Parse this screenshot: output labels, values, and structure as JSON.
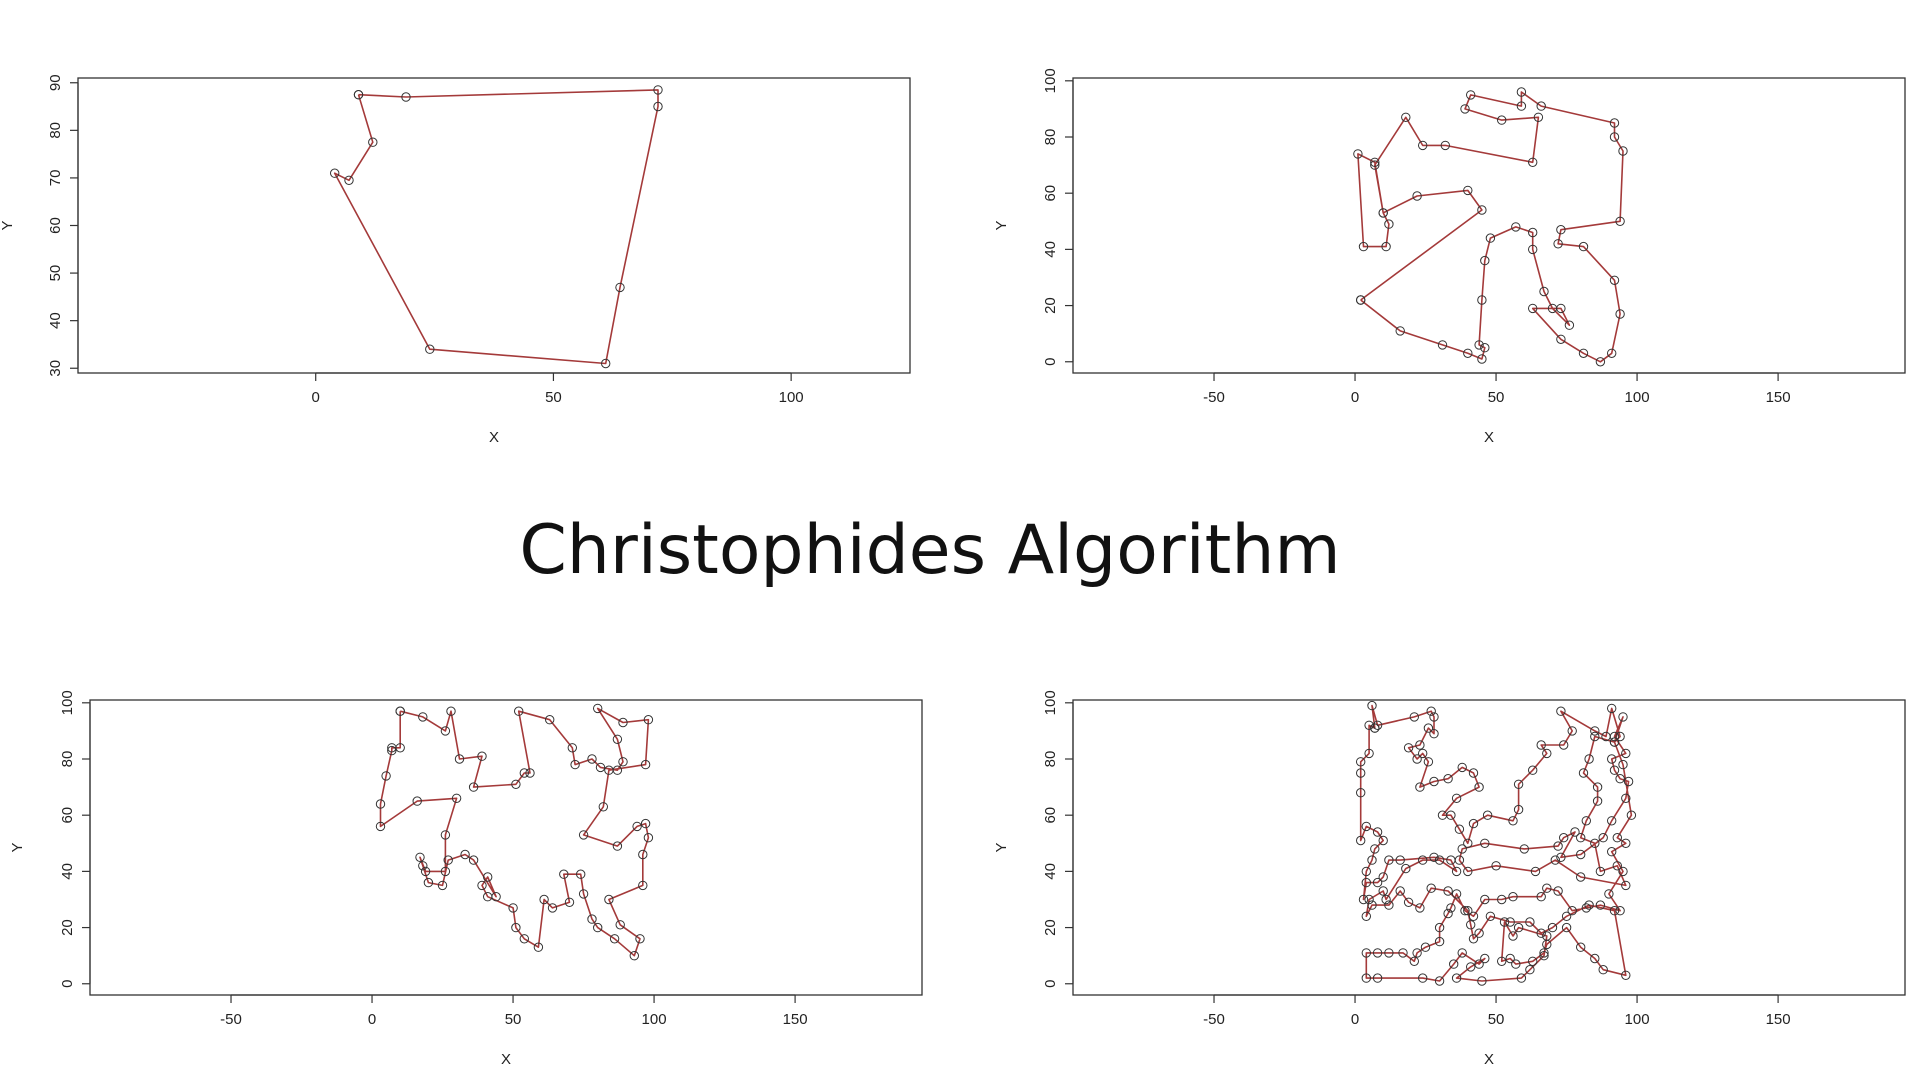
{
  "title": "Christophides Algorithm",
  "colors": {
    "tour": "#a43a3a",
    "points": "#333333",
    "frame": "#333333"
  },
  "chart_data": [
    {
      "type": "line",
      "xlabel": "X",
      "ylabel": "Y",
      "xlim": [
        -50,
        125
      ],
      "ylim": [
        29,
        91
      ],
      "xticks": [
        0,
        50,
        100
      ],
      "yticks": [
        30,
        40,
        50,
        60,
        70,
        80,
        90
      ],
      "grid": false,
      "points": [
        [
          9,
          87.5
        ],
        [
          19,
          87
        ],
        [
          72,
          88.5
        ],
        [
          72,
          85
        ],
        [
          64,
          47
        ],
        [
          61,
          31
        ],
        [
          24,
          34
        ],
        [
          4,
          71
        ],
        [
          7,
          69.5
        ],
        [
          12,
          77.5
        ],
        [
          9,
          87.5
        ]
      ]
    },
    {
      "type": "line",
      "xlabel": "X",
      "ylabel": "Y",
      "xlim": [
        -100,
        195
      ],
      "ylim": [
        -4,
        101
      ],
      "xticks": [
        -50,
        0,
        50,
        100,
        150
      ],
      "yticks": [
        0,
        20,
        40,
        60,
        80,
        100
      ],
      "grid": false,
      "points": [
        [
          2,
          22
        ],
        [
          16,
          11
        ],
        [
          31,
          6
        ],
        [
          40,
          3
        ],
        [
          45,
          1
        ],
        [
          46,
          5
        ],
        [
          44,
          6
        ],
        [
          45,
          22
        ],
        [
          46,
          36
        ],
        [
          48,
          44
        ],
        [
          57,
          48
        ],
        [
          63,
          46
        ],
        [
          63,
          40
        ],
        [
          67,
          25
        ],
        [
          70,
          19
        ],
        [
          76,
          13
        ],
        [
          73,
          19
        ],
        [
          63,
          19
        ],
        [
          73,
          8
        ],
        [
          81,
          3
        ],
        [
          87,
          0
        ],
        [
          91,
          3
        ],
        [
          94,
          17
        ],
        [
          92,
          29
        ],
        [
          81,
          41
        ],
        [
          72,
          42
        ],
        [
          73,
          47
        ],
        [
          94,
          50
        ],
        [
          95,
          75
        ],
        [
          92,
          80
        ],
        [
          92,
          85
        ],
        [
          66,
          91
        ],
        [
          59,
          96
        ],
        [
          59,
          91
        ],
        [
          41,
          95
        ],
        [
          39,
          90
        ],
        [
          52,
          86
        ],
        [
          65,
          87
        ],
        [
          63,
          71
        ],
        [
          32,
          77
        ],
        [
          24,
          77
        ],
        [
          18,
          87
        ],
        [
          7,
          70
        ],
        [
          10,
          53
        ],
        [
          12,
          49
        ],
        [
          11,
          41
        ],
        [
          3,
          41
        ],
        [
          1,
          74
        ],
        [
          7,
          71
        ],
        [
          10,
          53
        ],
        [
          22,
          59
        ],
        [
          40,
          61
        ],
        [
          45,
          54
        ],
        [
          2,
          22
        ]
      ]
    },
    {
      "type": "line",
      "xlabel": "X",
      "ylabel": "Y",
      "xlim": [
        -100,
        195
      ],
      "ylim": [
        -4,
        101
      ],
      "xticks": [
        -50,
        0,
        50,
        100,
        150
      ],
      "yticks": [
        0,
        20,
        40,
        60,
        80,
        100
      ],
      "grid": false,
      "points": [
        [
          10,
          97
        ],
        [
          18,
          95
        ],
        [
          26,
          90
        ],
        [
          28,
          97
        ],
        [
          31,
          80
        ],
        [
          39,
          81
        ],
        [
          36,
          70
        ],
        [
          51,
          71
        ],
        [
          54,
          75
        ],
        [
          56,
          75
        ],
        [
          52,
          97
        ],
        [
          63,
          94
        ],
        [
          71,
          84
        ],
        [
          72,
          78
        ],
        [
          78,
          80
        ],
        [
          81,
          77
        ],
        [
          87,
          76
        ],
        [
          89,
          79
        ],
        [
          87,
          87
        ],
        [
          80,
          98
        ],
        [
          89,
          93
        ],
        [
          98,
          94
        ],
        [
          97,
          78
        ],
        [
          84,
          76
        ],
        [
          82,
          63
        ],
        [
          75,
          53
        ],
        [
          87,
          49
        ],
        [
          94,
          56
        ],
        [
          97,
          57
        ],
        [
          98,
          52
        ],
        [
          96,
          46
        ],
        [
          96,
          35
        ],
        [
          84,
          30
        ],
        [
          88,
          21
        ],
        [
          95,
          16
        ],
        [
          93,
          10
        ],
        [
          86,
          16
        ],
        [
          80,
          20
        ],
        [
          78,
          23
        ],
        [
          75,
          32
        ],
        [
          74,
          39
        ],
        [
          68,
          39
        ],
        [
          70,
          29
        ],
        [
          64,
          27
        ],
        [
          61,
          30
        ],
        [
          59,
          13
        ],
        [
          54,
          16
        ],
        [
          51,
          20
        ],
        [
          50,
          27
        ],
        [
          41,
          31
        ],
        [
          39,
          35
        ],
        [
          41,
          38
        ],
        [
          44,
          31
        ],
        [
          36,
          44
        ],
        [
          33,
          46
        ],
        [
          27,
          44
        ],
        [
          25,
          35
        ],
        [
          20,
          36
        ],
        [
          18,
          42
        ],
        [
          17,
          45
        ],
        [
          19,
          40
        ],
        [
          26,
          40
        ],
        [
          26,
          53
        ],
        [
          30,
          66
        ],
        [
          16,
          65
        ],
        [
          3,
          56
        ],
        [
          3,
          64
        ],
        [
          5,
          74
        ],
        [
          7,
          83
        ],
        [
          7,
          84
        ],
        [
          10,
          84
        ],
        [
          10,
          97
        ]
      ]
    },
    {
      "type": "line",
      "xlabel": "X",
      "ylabel": "Y",
      "xlim": [
        -100,
        195
      ],
      "ylim": [
        -4,
        101
      ],
      "xticks": [
        -50,
        0,
        50,
        100,
        150
      ],
      "yticks": [
        0,
        20,
        40,
        60,
        80,
        100
      ],
      "grid": false,
      "points": [
        [
          7,
          91
        ],
        [
          6,
          99
        ],
        [
          8,
          92
        ],
        [
          21,
          95
        ],
        [
          27,
          97
        ],
        [
          28,
          95
        ],
        [
          28,
          89
        ],
        [
          26,
          91
        ],
        [
          23,
          85
        ],
        [
          19,
          84
        ],
        [
          22,
          80
        ],
        [
          24,
          82
        ],
        [
          26,
          79
        ],
        [
          23,
          70
        ],
        [
          28,
          72
        ],
        [
          33,
          73
        ],
        [
          38,
          77
        ],
        [
          42,
          75
        ],
        [
          44,
          70
        ],
        [
          36,
          66
        ],
        [
          31,
          60
        ],
        [
          34,
          60
        ],
        [
          37,
          55
        ],
        [
          40,
          50
        ],
        [
          42,
          57
        ],
        [
          47,
          60
        ],
        [
          56,
          58
        ],
        [
          58,
          62
        ],
        [
          58,
          71
        ],
        [
          63,
          76
        ],
        [
          68,
          82
        ],
        [
          66,
          85
        ],
        [
          74,
          85
        ],
        [
          77,
          90
        ],
        [
          73,
          97
        ],
        [
          85,
          90
        ],
        [
          89,
          88
        ],
        [
          91,
          98
        ],
        [
          94,
          88
        ],
        [
          92,
          86
        ],
        [
          85,
          88
        ],
        [
          83,
          80
        ],
        [
          81,
          75
        ],
        [
          86,
          70
        ],
        [
          86,
          65
        ],
        [
          82,
          58
        ],
        [
          80,
          52
        ],
        [
          85,
          50
        ],
        [
          87,
          40
        ],
        [
          93,
          42
        ],
        [
          96,
          35
        ],
        [
          80,
          38
        ],
        [
          71,
          44
        ],
        [
          64,
          40
        ],
        [
          50,
          42
        ],
        [
          40,
          40
        ],
        [
          37,
          44
        ],
        [
          38,
          48
        ],
        [
          46,
          50
        ],
        [
          60,
          48
        ],
        [
          72,
          49
        ],
        [
          74,
          52
        ],
        [
          78,
          54
        ],
        [
          73,
          45
        ],
        [
          80,
          46
        ],
        [
          88,
          52
        ],
        [
          91,
          58
        ],
        [
          96,
          66
        ],
        [
          97,
          72
        ],
        [
          94,
          73
        ],
        [
          92,
          76
        ],
        [
          91,
          80
        ],
        [
          96,
          82
        ],
        [
          92,
          88
        ],
        [
          95,
          95
        ],
        [
          92,
          86
        ],
        [
          95,
          78
        ],
        [
          98,
          60
        ],
        [
          93,
          52
        ],
        [
          96,
          50
        ],
        [
          91,
          47
        ],
        [
          95,
          40
        ],
        [
          90,
          32
        ],
        [
          94,
          26
        ],
        [
          87,
          28
        ],
        [
          82,
          27
        ],
        [
          77,
          26
        ],
        [
          72,
          33
        ],
        [
          68,
          34
        ],
        [
          66,
          31
        ],
        [
          56,
          31
        ],
        [
          52,
          30
        ],
        [
          46,
          30
        ],
        [
          42,
          24
        ],
        [
          39,
          26
        ],
        [
          36,
          32
        ],
        [
          34,
          27
        ],
        [
          33,
          25
        ],
        [
          30,
          20
        ],
        [
          30,
          15
        ],
        [
          25,
          13
        ],
        [
          22,
          11
        ],
        [
          21,
          8
        ],
        [
          17,
          11
        ],
        [
          12,
          11
        ],
        [
          8,
          11
        ],
        [
          4,
          11
        ],
        [
          4,
          2
        ],
        [
          8,
          2
        ],
        [
          24,
          2
        ],
        [
          30,
          1
        ],
        [
          35,
          7
        ],
        [
          38,
          11
        ],
        [
          44,
          7
        ],
        [
          46,
          9
        ],
        [
          41,
          6
        ],
        [
          36,
          2
        ],
        [
          45,
          1
        ],
        [
          59,
          2
        ],
        [
          62,
          5
        ],
        [
          67,
          10
        ],
        [
          68,
          17
        ],
        [
          58,
          20
        ],
        [
          56,
          17
        ],
        [
          53,
          22
        ],
        [
          52,
          8
        ],
        [
          55,
          9
        ],
        [
          57,
          7
        ],
        [
          63,
          8
        ],
        [
          67,
          11
        ],
        [
          68,
          14
        ],
        [
          75,
          20
        ],
        [
          80,
          13
        ],
        [
          85,
          9
        ],
        [
          88,
          5
        ],
        [
          96,
          3
        ],
        [
          92,
          26
        ],
        [
          83,
          28
        ],
        [
          75,
          24
        ],
        [
          70,
          20
        ],
        [
          66,
          18
        ],
        [
          62,
          22
        ],
        [
          55,
          22
        ],
        [
          48,
          24
        ],
        [
          44,
          18
        ],
        [
          42,
          16
        ],
        [
          41,
          21
        ],
        [
          40,
          26
        ],
        [
          33,
          33
        ],
        [
          27,
          34
        ],
        [
          23,
          27
        ],
        [
          19,
          29
        ],
        [
          16,
          33
        ],
        [
          12,
          28
        ],
        [
          6,
          28
        ],
        [
          4,
          24
        ],
        [
          5,
          30
        ],
        [
          10,
          33
        ],
        [
          11,
          30
        ],
        [
          18,
          41
        ],
        [
          24,
          44
        ],
        [
          30,
          44
        ],
        [
          36,
          40
        ],
        [
          34,
          44
        ],
        [
          28,
          45
        ],
        [
          16,
          44
        ],
        [
          12,
          44
        ],
        [
          10,
          38
        ],
        [
          8,
          36
        ],
        [
          4,
          36
        ],
        [
          3,
          30
        ],
        [
          4,
          40
        ],
        [
          6,
          44
        ],
        [
          7,
          48
        ],
        [
          10,
          51
        ],
        [
          8,
          54
        ],
        [
          4,
          56
        ],
        [
          2,
          51
        ],
        [
          2,
          68
        ],
        [
          2,
          75
        ],
        [
          2,
          79
        ],
        [
          5,
          82
        ],
        [
          5,
          92
        ],
        [
          7,
          91
        ]
      ]
    }
  ]
}
